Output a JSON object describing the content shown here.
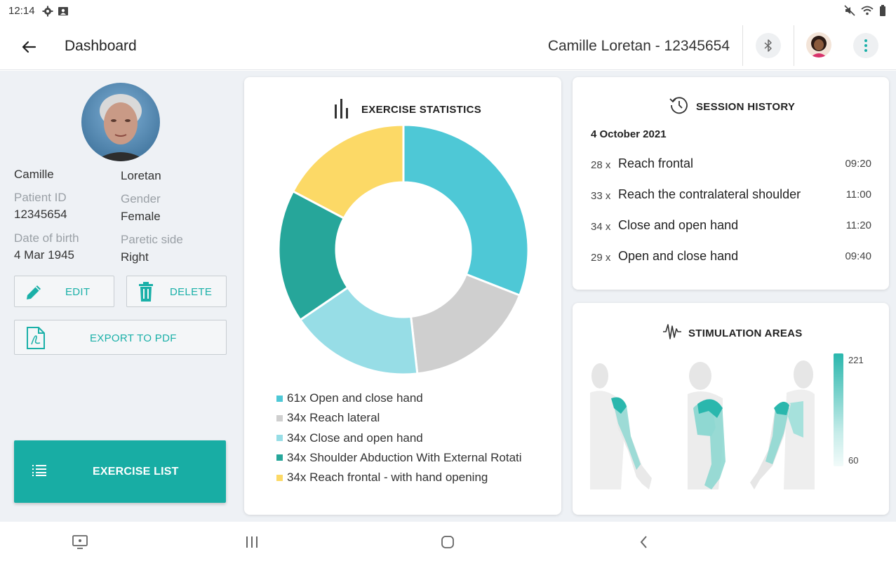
{
  "status": {
    "time": "12:14"
  },
  "appbar": {
    "title": "Dashboard",
    "patient_header": "Camille Loretan - 12345654"
  },
  "patient": {
    "first_name": "Camille",
    "last_name": "Loretan",
    "patient_id_label": "Patient ID",
    "patient_id": "12345654",
    "gender_label": "Gender",
    "gender": "Female",
    "dob_label": "Date of birth",
    "dob": "4 Mar 1945",
    "paretic_label": "Paretic side",
    "paretic": "Right"
  },
  "actions": {
    "edit_label": "EDIT",
    "delete_label": "DELETE",
    "export_label": "EXPORT TO PDF",
    "exercise_list_label": "EXERCISE LIST"
  },
  "exercise_stats": {
    "title": "EXERCISE STATISTICS",
    "legend": [
      {
        "label": "61x Open and close hand",
        "color": "#4ec8d6"
      },
      {
        "label": "34x Reach lateral",
        "color": "#cfcfcf"
      },
      {
        "label": "34x Close and open hand",
        "color": "#97dde6"
      },
      {
        "label": "34x Shoulder Abduction With External Rotati",
        "color": "#26a69a"
      },
      {
        "label": "34x Reach frontal - with hand opening",
        "color": "#fcd966"
      }
    ]
  },
  "chart_data": {
    "type": "pie",
    "categories": [
      "Open and close hand",
      "Reach lateral",
      "Close and open hand",
      "Shoulder Abduction With External Rotati",
      "Reach frontal - with hand opening"
    ],
    "values": [
      61,
      34,
      34,
      34,
      34
    ],
    "colors": [
      "#4ec8d6",
      "#cfcfcf",
      "#97dde6",
      "#26a69a",
      "#fcd966"
    ],
    "donut": true
  },
  "session_history": {
    "title": "SESSION HISTORY",
    "date": "4 October 2021",
    "sessions": [
      {
        "count": "28 x",
        "name": "Reach frontal",
        "time": "09:20"
      },
      {
        "count": "33 x",
        "name": "Reach the contralateral shoulder",
        "time": "11:00"
      },
      {
        "count": "34 x",
        "name": "Close and open hand",
        "time": "11:20"
      },
      {
        "count": "29 x",
        "name": "Open and close hand",
        "time": "09:40"
      }
    ]
  },
  "stimulation": {
    "title": "STIMULATION AREAS",
    "scale_max": "221",
    "scale_min": "60",
    "accent": "#2ab7ad"
  }
}
